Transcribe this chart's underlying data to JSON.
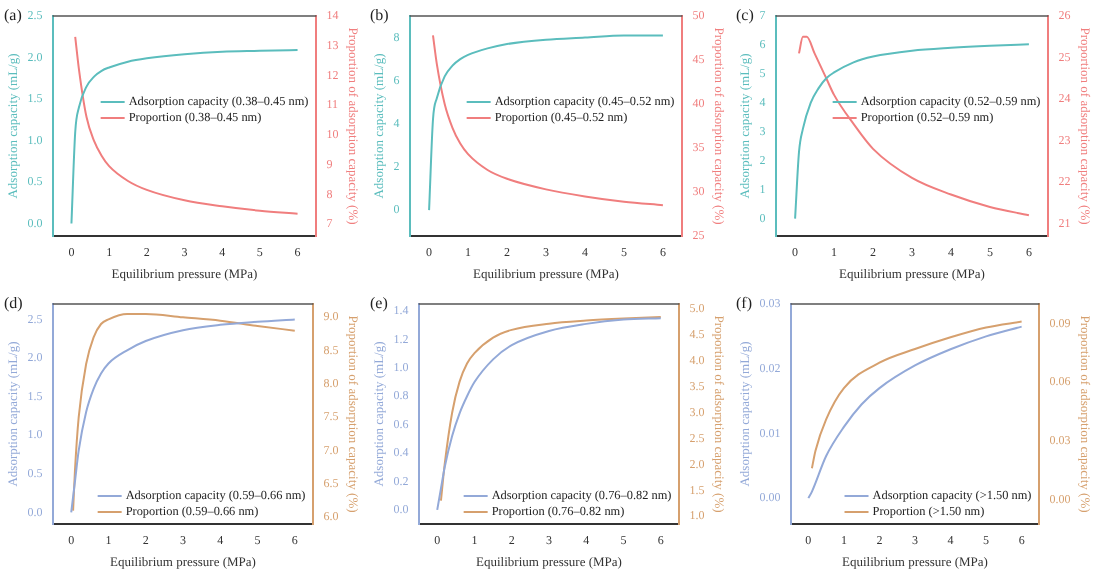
{
  "chart_data": [
    {
      "type": "line",
      "title": "(a)",
      "xlabel": "Equilibrium pressure (MPa)",
      "ylabel": "Adsorption capacity (mL/g)",
      "y2label": "Proportion of adsorption capacity (%)",
      "xlim": [
        -0.5,
        6.5
      ],
      "xticks": [
        0,
        1,
        2,
        3,
        4,
        5,
        6
      ],
      "ylim": [
        -0.15,
        2.5
      ],
      "yticks": [
        {
          "value": 0,
          "label": "0.0"
        },
        0.5,
        {
          "value": 1,
          "label": "1.0"
        },
        1.5,
        {
          "value": 2,
          "label": "2.0"
        },
        2.5
      ],
      "y2lim": [
        6.6,
        14
      ],
      "y2ticks": [
        7,
        8,
        9,
        10,
        11,
        12,
        13,
        14
      ],
      "legend": "right",
      "series": [
        {
          "name": "Adsorption capacity (0.38–0.45 nm)",
          "color": "#5bbdbd",
          "x": [
            0,
            0.1,
            0.2,
            0.4,
            0.6,
            0.8,
            1,
            1.5,
            2,
            3,
            4,
            5,
            6
          ],
          "values": [
            0,
            1.1,
            1.4,
            1.65,
            1.77,
            1.84,
            1.88,
            1.95,
            1.99,
            2.04,
            2.07,
            2.08,
            2.09
          ]
        },
        {
          "name": "Proportion (0.38–0.45 nm)",
          "color": "#f07e7e",
          "axis": "y2",
          "x": [
            0.1,
            0.2,
            0.4,
            0.6,
            0.8,
            1,
            1.5,
            2,
            3,
            4,
            5,
            6
          ],
          "values": [
            13.3,
            12.2,
            10.6,
            9.8,
            9.3,
            8.95,
            8.45,
            8.15,
            7.8,
            7.6,
            7.45,
            7.35
          ]
        }
      ]
    },
    {
      "type": "line",
      "title": "(b)",
      "xlabel": "Equilibrium pressure (MPa)",
      "ylabel": "Adsorption capacity (mL/g)",
      "y2label": "Proportion of adsorption capacity (%)",
      "xlim": [
        -0.5,
        6.5
      ],
      "xticks": [
        0,
        1,
        2,
        3,
        4,
        5,
        6
      ],
      "ylim": [
        -1.2,
        9
      ],
      "yticks": [
        0,
        2,
        4,
        6,
        8
      ],
      "y2lim": [
        25,
        50
      ],
      "y2ticks": [
        25,
        30,
        35,
        40,
        45,
        50
      ],
      "legend": "right",
      "series": [
        {
          "name": "Adsorption capacity (0.45–0.52 nm)",
          "color": "#5bbdbd",
          "x": [
            0,
            0.1,
            0.2,
            0.4,
            0.6,
            0.8,
            1,
            1.5,
            2,
            3,
            4,
            5,
            6
          ],
          "values": [
            0,
            4.2,
            5.2,
            6.2,
            6.7,
            7,
            7.2,
            7.5,
            7.7,
            7.9,
            8,
            8.1,
            8.1
          ]
        },
        {
          "name": "Proportion (0.45–0.52 nm)",
          "color": "#f07e7e",
          "axis": "y2",
          "x": [
            0.1,
            0.2,
            0.4,
            0.6,
            0.8,
            1,
            1.5,
            2,
            3,
            4,
            5,
            6
          ],
          "values": [
            47.8,
            44.5,
            40,
            37.3,
            35.5,
            34.3,
            32.5,
            31.5,
            30.3,
            29.5,
            28.9,
            28.5
          ]
        }
      ]
    },
    {
      "type": "line",
      "title": "(c)",
      "xlabel": "Equilibrium pressure (MPa)",
      "ylabel": "Adsorption capacity (mL/g)",
      "y2label": "Proportion of adsorption capacity (%)",
      "xlim": [
        -0.5,
        6.5
      ],
      "xticks": [
        0,
        1,
        2,
        3,
        4,
        5,
        6
      ],
      "ylim": [
        -0.6,
        7
      ],
      "yticks": [
        0,
        1,
        2,
        3,
        4,
        5,
        6,
        7
      ],
      "y2lim": [
        20.7,
        26
      ],
      "y2ticks": [
        21,
        22,
        23,
        24,
        25,
        26
      ],
      "legend": "right",
      "series": [
        {
          "name": "Adsorption capacity (0.52–0.59 nm)",
          "color": "#5bbdbd",
          "x": [
            0,
            0.1,
            0.2,
            0.4,
            0.6,
            0.8,
            1,
            1.5,
            2,
            3,
            4,
            5,
            6
          ],
          "values": [
            0,
            2.3,
            3.1,
            4,
            4.5,
            4.85,
            5.05,
            5.4,
            5.6,
            5.8,
            5.9,
            5.97,
            6.02
          ]
        },
        {
          "name": "Proportion (0.52–0.59 nm)",
          "color": "#f07e7e",
          "axis": "y2",
          "x": [
            0.1,
            0.2,
            0.3,
            0.5,
            0.8,
            1,
            1.5,
            2,
            3,
            4,
            5,
            6
          ],
          "values": [
            25.1,
            25.5,
            25.5,
            25.1,
            24.5,
            24.1,
            23.4,
            22.8,
            22.1,
            21.7,
            21.4,
            21.2
          ]
        }
      ]
    },
    {
      "type": "line",
      "title": "(d)",
      "xlabel": "Equilibrium pressure (MPa)",
      "ylabel": "Adsorption capacity (mL/g)",
      "y2label": "Proportion of adsorption capacity (%)",
      "xlim": [
        -0.5,
        6.5
      ],
      "xticks": [
        0,
        1,
        2,
        3,
        4,
        5,
        6
      ],
      "ylim": [
        -0.15,
        2.7
      ],
      "yticks": [
        {
          "value": 0,
          "label": "0.0"
        },
        0.5,
        {
          "value": 1,
          "label": "1.0"
        },
        1.5,
        {
          "value": 2,
          "label": "2.0"
        },
        2.5
      ],
      "y2lim": [
        5.9,
        9.2
      ],
      "y2ticks": [
        {
          "value": 6,
          "label": "6.0"
        },
        6.5,
        {
          "value": 7,
          "label": "7.0"
        },
        7.5,
        {
          "value": 8,
          "label": "8.0"
        },
        8.5,
        {
          "value": 9,
          "label": "9.0"
        }
      ],
      "legend": "bottom right",
      "series": [
        {
          "name": "Adsorption capacity (0.59–0.66 nm)",
          "color": "#93a9d8",
          "x": [
            0,
            0.1,
            0.2,
            0.4,
            0.6,
            0.8,
            1,
            1.5,
            2,
            3,
            4,
            5,
            6
          ],
          "values": [
            0,
            0.4,
            0.8,
            1.3,
            1.6,
            1.8,
            1.93,
            2.1,
            2.22,
            2.36,
            2.43,
            2.47,
            2.5
          ]
        },
        {
          "name": "Proportion (0.59–0.66 nm)",
          "color": "#d6a06e",
          "axis": "y2",
          "x": [
            0.05,
            0.1,
            0.2,
            0.4,
            0.6,
            0.8,
            1,
            1.5,
            2,
            3,
            4,
            5,
            6
          ],
          "values": [
            6.1,
            6.7,
            7.5,
            8.3,
            8.7,
            8.9,
            8.97,
            9.05,
            9.05,
            9,
            8.95,
            8.87,
            8.8
          ]
        }
      ]
    },
    {
      "type": "line",
      "title": "(e)",
      "xlabel": "Equilibrium pressure (MPa)",
      "ylabel": "Adsorption capacity (mL/g)",
      "y2label": "Proportion of adsorption capacity (%)",
      "xlim": [
        -0.5,
        6.5
      ],
      "xticks": [
        0,
        1,
        2,
        3,
        4,
        5,
        6
      ],
      "ylim": [
        -0.1,
        1.45
      ],
      "yticks": [
        {
          "value": 0,
          "label": "0.0"
        },
        0.2,
        0.4,
        0.6,
        0.8,
        {
          "value": 1,
          "label": "1.0"
        },
        1.2,
        1.4
      ],
      "y2lim": [
        0.85,
        5.1
      ],
      "y2ticks": [
        {
          "value": 1,
          "label": "1.0"
        },
        1.5,
        {
          "value": 2,
          "label": "2.0"
        },
        2.5,
        {
          "value": 3,
          "label": "3.0"
        },
        3.5,
        {
          "value": 4,
          "label": "4.0"
        },
        4.5,
        {
          "value": 5,
          "label": "5.0"
        }
      ],
      "legend": "bottom right",
      "series": [
        {
          "name": "Adsorption capacity (0.76–0.82 nm)",
          "color": "#93a9d8",
          "x": [
            0,
            0.1,
            0.2,
            0.4,
            0.6,
            0.8,
            1,
            1.5,
            2,
            3,
            4,
            5,
            6
          ],
          "values": [
            0,
            0.15,
            0.3,
            0.52,
            0.68,
            0.8,
            0.9,
            1.06,
            1.16,
            1.26,
            1.31,
            1.34,
            1.35
          ]
        },
        {
          "name": "Proportion (0.76–0.82 nm)",
          "color": "#d6a06e",
          "axis": "y2",
          "x": [
            0.1,
            0.2,
            0.4,
            0.6,
            0.8,
            1,
            1.5,
            2,
            3,
            4,
            5,
            6
          ],
          "values": [
            1.3,
            2,
            3,
            3.6,
            3.95,
            4.15,
            4.45,
            4.6,
            4.72,
            4.78,
            4.82,
            4.85
          ]
        }
      ]
    },
    {
      "type": "line",
      "title": "(f)",
      "xlabel": "Equilibrium pressure (MPa)",
      "ylabel": "Adsorption capacity (mL/g)",
      "y2label": "Proportion of adsorption capacity (%)",
      "xlim": [
        -0.5,
        6.5
      ],
      "xticks": [
        0,
        1,
        2,
        3,
        4,
        5,
        6
      ],
      "ylim": [
        -0.004,
        0.03
      ],
      "yticks": [
        {
          "value": 0,
          "label": "0.00"
        },
        0.01,
        0.02,
        0.03
      ],
      "y2lim": [
        -0.0125,
        0.1
      ],
      "y2ticks": [
        {
          "value": 0,
          "label": "0.00"
        },
        0.03,
        0.06,
        0.09
      ],
      "legend": "bottom right",
      "series": [
        {
          "name": "Adsorption capacity (>1.50 nm)",
          "color": "#93a9d8",
          "x": [
            0,
            0.1,
            0.5,
            1,
            1.5,
            2,
            3,
            4,
            5,
            6
          ],
          "values": [
            0,
            0.001,
            0.0065,
            0.011,
            0.0145,
            0.017,
            0.0205,
            0.023,
            0.025,
            0.0265
          ]
        },
        {
          "name": "Proportion (>1.50 nm)",
          "color": "#d6a06e",
          "axis": "y2",
          "x": [
            0.1,
            0.2,
            0.5,
            1,
            2,
            3,
            4,
            5,
            6
          ],
          "values": [
            0.016,
            0.025,
            0.041,
            0.057,
            0.07,
            0.077,
            0.083,
            0.088,
            0.091
          ]
        }
      ]
    }
  ]
}
